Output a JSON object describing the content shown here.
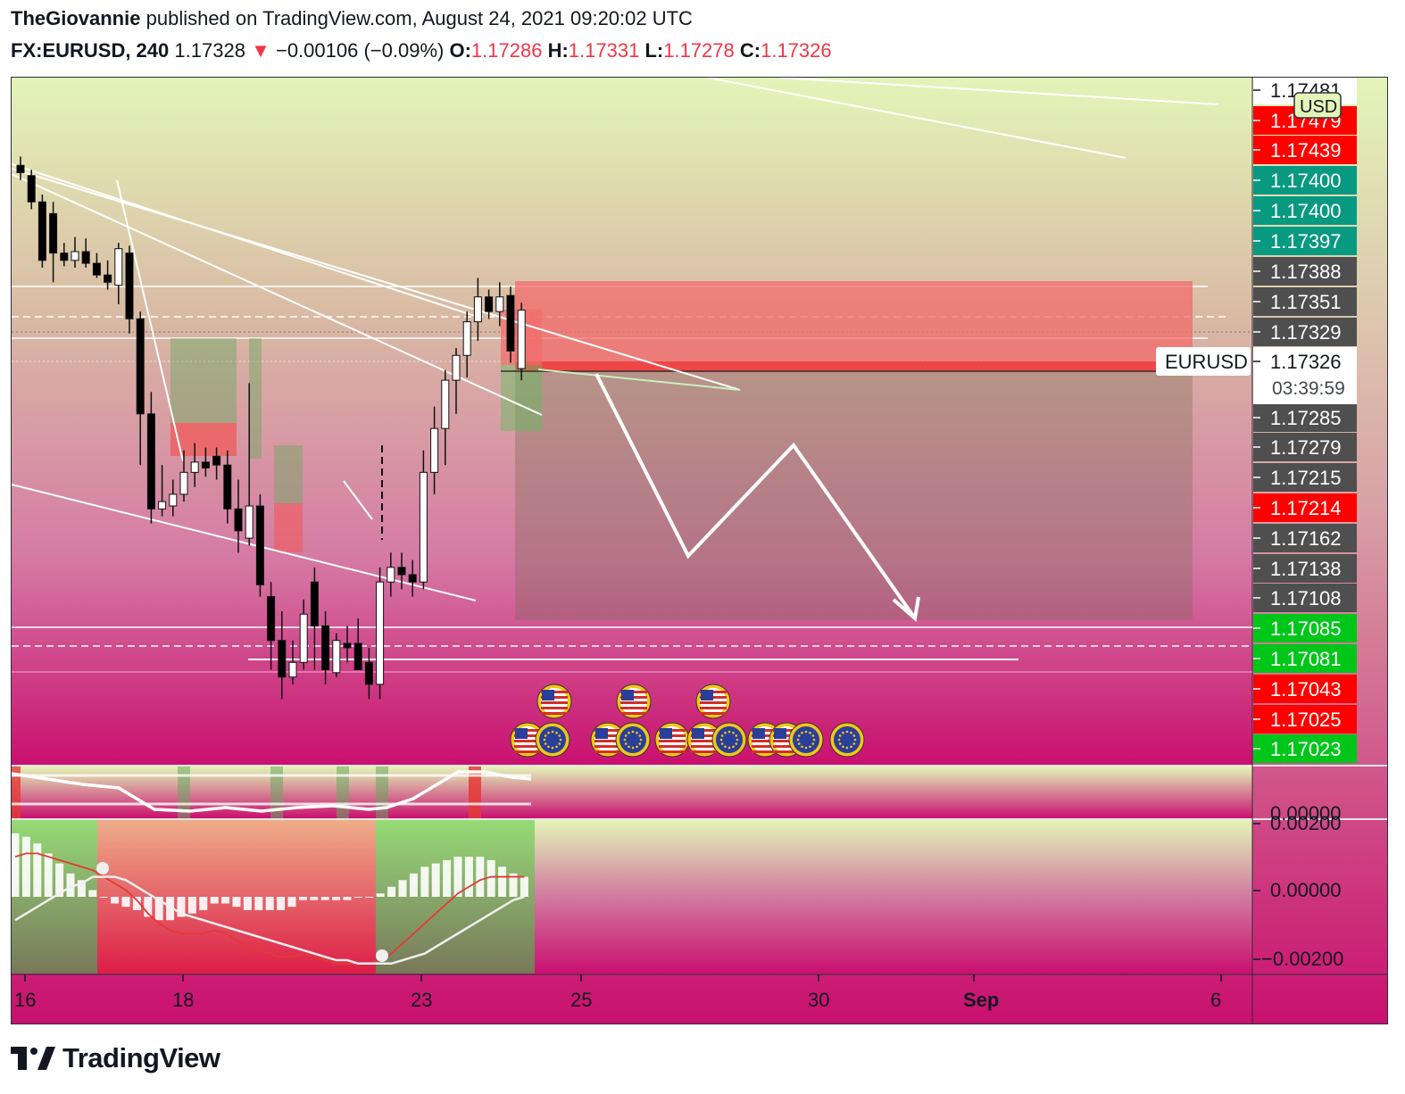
{
  "header": {
    "author": "TheGiovannie",
    "published_text": "published on TradingView.com, August 24, 2021 09:20:02 UTC",
    "symbol": "FX:EURUSD, 240",
    "last_price": "1.17328",
    "change_arrow": "▼",
    "change": "−0.00106 (−0.09%)",
    "open_label": "O:",
    "open": "1.17286",
    "high_label": "H:",
    "high": "1.17331",
    "low_label": "L:",
    "low": "1.17278",
    "close_label": "C:",
    "close": "1.17326"
  },
  "colors": {
    "up": "#ffffff",
    "down": "#000000",
    "red_label": "#ff0000",
    "green_label": "#089981",
    "bright_green_label": "#00c61a",
    "gray_label": "#4f4f4f",
    "zone_red": "#f26b6b",
    "bg_top": "#e3f5b8",
    "bg_bottom": "#c9106f"
  },
  "price_axis": {
    "currency": "USD",
    "symbol_tag": "EURUSD",
    "current_price": "1.17326",
    "countdown": "03:39:59",
    "labels": [
      {
        "text": "1.17481",
        "style": "white"
      },
      {
        "text": "1.17479",
        "style": "red"
      },
      {
        "text": "1.17439",
        "style": "red"
      },
      {
        "text": "1.17400",
        "style": "green"
      },
      {
        "text": "1.17400",
        "style": "green"
      },
      {
        "text": "1.17397",
        "style": "green"
      },
      {
        "text": "1.17388",
        "style": "gray"
      },
      {
        "text": "1.17351",
        "style": "gray"
      },
      {
        "text": "1.17329",
        "style": "gray"
      },
      {
        "text": "1.17285",
        "style": "gray"
      },
      {
        "text": "1.17279",
        "style": "gray"
      },
      {
        "text": "1.17215",
        "style": "gray"
      },
      {
        "text": "1.17214",
        "style": "red"
      },
      {
        "text": "1.17162",
        "style": "gray"
      },
      {
        "text": "1.17138",
        "style": "gray"
      },
      {
        "text": "1.17108",
        "style": "gray"
      },
      {
        "text": "1.17085",
        "style": "bgreen"
      },
      {
        "text": "1.17081",
        "style": "bgreen"
      },
      {
        "text": "1.17043",
        "style": "red"
      },
      {
        "text": "1.17025",
        "style": "red"
      },
      {
        "text": "1.17023",
        "style": "bgreen"
      }
    ]
  },
  "time_axis": [
    "16",
    "18",
    "23",
    "25",
    "30",
    "Sep",
    "6"
  ],
  "indicator_axis": {
    "pane1": [
      "0.00000"
    ],
    "pane2": [
      "0.00200",
      "0.00000",
      "−0.00200"
    ]
  },
  "event_flags": [
    "us",
    "us",
    "us",
    "us",
    "eu",
    "us",
    "eu",
    "us",
    "us",
    "eu",
    "us",
    "us",
    "eu",
    "eu"
  ],
  "chart_data": {
    "type": "candlestick",
    "symbol": "FX:EURUSD",
    "interval": "240",
    "x_ticks": [
      "16",
      "18",
      "23",
      "25",
      "30",
      "Sep",
      "6"
    ],
    "ylim": [
      1.17015,
      1.17485
    ],
    "candles": [
      {
        "o": 1.17425,
        "h": 1.17431,
        "l": 1.17415,
        "c": 1.1742
      },
      {
        "o": 1.17418,
        "h": 1.17422,
        "l": 1.17395,
        "c": 1.174
      },
      {
        "o": 1.174,
        "h": 1.17405,
        "l": 1.17355,
        "c": 1.1736
      },
      {
        "o": 1.17392,
        "h": 1.174,
        "l": 1.17345,
        "c": 1.17365
      },
      {
        "o": 1.17365,
        "h": 1.17372,
        "l": 1.17356,
        "c": 1.1736
      },
      {
        "o": 1.1736,
        "h": 1.17376,
        "l": 1.17355,
        "c": 1.17366
      },
      {
        "o": 1.17366,
        "h": 1.17375,
        "l": 1.17355,
        "c": 1.17358
      },
      {
        "o": 1.17358,
        "h": 1.17365,
        "l": 1.17348,
        "c": 1.1735
      },
      {
        "o": 1.1735,
        "h": 1.1736,
        "l": 1.1734,
        "c": 1.17345
      },
      {
        "o": 1.17343,
        "h": 1.17372,
        "l": 1.1733,
        "c": 1.17368
      },
      {
        "o": 1.17365,
        "h": 1.1737,
        "l": 1.1731,
        "c": 1.1732
      },
      {
        "o": 1.1732,
        "h": 1.17325,
        "l": 1.1722,
        "c": 1.17255
      },
      {
        "o": 1.17255,
        "h": 1.1727,
        "l": 1.1718,
        "c": 1.1719
      },
      {
        "o": 1.1719,
        "h": 1.1722,
        "l": 1.17185,
        "c": 1.17195
      },
      {
        "o": 1.17192,
        "h": 1.1721,
        "l": 1.17185,
        "c": 1.172
      },
      {
        "o": 1.172,
        "h": 1.1723,
        "l": 1.17195,
        "c": 1.17215
      },
      {
        "o": 1.17215,
        "h": 1.17235,
        "l": 1.17205,
        "c": 1.17222
      },
      {
        "o": 1.17222,
        "h": 1.17232,
        "l": 1.17212,
        "c": 1.17218
      },
      {
        "o": 1.17226,
        "h": 1.17232,
        "l": 1.1721,
        "c": 1.1722
      },
      {
        "o": 1.1722,
        "h": 1.1723,
        "l": 1.1718,
        "c": 1.1719
      },
      {
        "o": 1.1719,
        "h": 1.1721,
        "l": 1.1716,
        "c": 1.17175
      },
      {
        "o": 1.1717,
        "h": 1.17276,
        "l": 1.17165,
        "c": 1.17192
      },
      {
        "o": 1.17192,
        "h": 1.172,
        "l": 1.1713,
        "c": 1.17138
      },
      {
        "o": 1.1713,
        "h": 1.1714,
        "l": 1.1708,
        "c": 1.171
      },
      {
        "o": 1.171,
        "h": 1.1712,
        "l": 1.1706,
        "c": 1.17075
      },
      {
        "o": 1.17075,
        "h": 1.171,
        "l": 1.1707,
        "c": 1.17085
      },
      {
        "o": 1.17085,
        "h": 1.17128,
        "l": 1.1708,
        "c": 1.17118
      },
      {
        "o": 1.1714,
        "h": 1.1715,
        "l": 1.1708,
        "c": 1.1711
      },
      {
        "o": 1.1711,
        "h": 1.1712,
        "l": 1.1707,
        "c": 1.1708
      },
      {
        "o": 1.17078,
        "h": 1.17105,
        "l": 1.17075,
        "c": 1.171
      },
      {
        "o": 1.17098,
        "h": 1.1711,
        "l": 1.17085,
        "c": 1.17095
      },
      {
        "o": 1.17098,
        "h": 1.17115,
        "l": 1.1708,
        "c": 1.1708
      },
      {
        "o": 1.17085,
        "h": 1.17095,
        "l": 1.1706,
        "c": 1.1707
      },
      {
        "o": 1.1707,
        "h": 1.1715,
        "l": 1.1706,
        "c": 1.1714
      },
      {
        "o": 1.1714,
        "h": 1.1716,
        "l": 1.1713,
        "c": 1.1715
      },
      {
        "o": 1.1715,
        "h": 1.1716,
        "l": 1.17135,
        "c": 1.17145
      },
      {
        "o": 1.17145,
        "h": 1.17155,
        "l": 1.1713,
        "c": 1.1714
      },
      {
        "o": 1.1714,
        "h": 1.1723,
        "l": 1.17135,
        "c": 1.17215
      },
      {
        "o": 1.17215,
        "h": 1.1726,
        "l": 1.172,
        "c": 1.17245
      },
      {
        "o": 1.17245,
        "h": 1.17285,
        "l": 1.1722,
        "c": 1.17278
      },
      {
        "o": 1.17278,
        "h": 1.173,
        "l": 1.17255,
        "c": 1.17295
      },
      {
        "o": 1.17295,
        "h": 1.17325,
        "l": 1.1728,
        "c": 1.17318
      },
      {
        "o": 1.17318,
        "h": 1.17348,
        "l": 1.17305,
        "c": 1.17335
      },
      {
        "o": 1.17335,
        "h": 1.1734,
        "l": 1.1732,
        "c": 1.17325
      },
      {
        "o": 1.17325,
        "h": 1.17345,
        "l": 1.17315,
        "c": 1.17335
      },
      {
        "o": 1.17336,
        "h": 1.17342,
        "l": 1.1729,
        "c": 1.17298
      },
      {
        "o": 1.17286,
        "h": 1.17331,
        "l": 1.17278,
        "c": 1.17326
      }
    ],
    "indicator_macd": {
      "macd": [
        0.0012,
        0.0013,
        0.0013,
        0.0012,
        0.0011,
        0.001,
        0.0009,
        0.0008,
        0.0006,
        0.0004,
        0.0002,
        -0.0001,
        -0.0005,
        -0.0008,
        -0.001,
        -0.0011,
        -0.0011,
        -0.0011,
        -0.001,
        -0.0011,
        -0.0013,
        -0.0015,
        -0.0016,
        -0.0017,
        -0.0018,
        -0.0018,
        -0.0017,
        -0.0018,
        -0.0019,
        -0.002,
        -0.002,
        -0.002,
        -0.002,
        -0.0019,
        -0.0017,
        -0.0014,
        -0.0011,
        -0.0008,
        -0.0005,
        -0.0002,
        0.0001,
        0.0003,
        0.0005,
        0.0006,
        0.0006,
        0.0006,
        0.0006
      ],
      "signal": [
        -0.0007,
        -0.0005,
        -0.0003,
        -0.0001,
        0.0001,
        0.0003,
        0.0004,
        0.0006,
        0.0006,
        0.0006,
        0.0005,
        0.0003,
        0.0001,
        -0.0001,
        -0.0003,
        -0.0005,
        -0.0006,
        -0.0007,
        -0.0008,
        -0.0009,
        -0.001,
        -0.0011,
        -0.0012,
        -0.0013,
        -0.0014,
        -0.0015,
        -0.0016,
        -0.0017,
        -0.0018,
        -0.0019,
        -0.0019,
        -0.002,
        -0.002,
        -0.002,
        -0.002,
        -0.0019,
        -0.0018,
        -0.0017,
        -0.0015,
        -0.0013,
        -0.0011,
        -0.0009,
        -0.0007,
        -0.0005,
        -0.0003,
        -0.0001,
        0.0
      ],
      "histogram": [
        0.0019,
        0.0018,
        0.0016,
        0.0013,
        0.001,
        0.0007,
        0.0005,
        0.0002,
        0.0,
        -0.0002,
        -0.0003,
        -0.0004,
        -0.0006,
        -0.0007,
        -0.0007,
        -0.0006,
        -0.0005,
        -0.0004,
        -0.0002,
        -0.0002,
        -0.0003,
        -0.0004,
        -0.0004,
        -0.0004,
        -0.0004,
        -0.0003,
        -0.0001,
        -0.0001,
        -0.0001,
        -0.0001,
        -0.0001,
        0.0,
        0.0,
        0.0001,
        0.0003,
        0.0005,
        0.0007,
        0.0009,
        0.001,
        0.0011,
        0.0012,
        0.0012,
        0.0012,
        0.0011,
        0.0009,
        0.0007,
        0.0006
      ]
    }
  },
  "footer": {
    "brand": "TradingView"
  }
}
